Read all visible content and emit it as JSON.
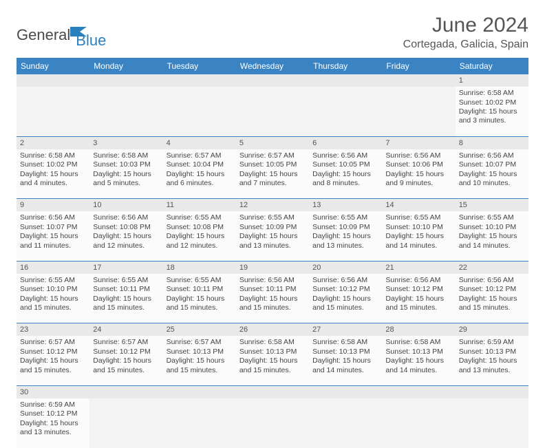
{
  "logo": {
    "part1": "General",
    "part2": "Blue"
  },
  "title": "June 2024",
  "location": "Cortegada, Galicia, Spain",
  "colors": {
    "header_bg": "#3b84c4",
    "header_fg": "#ffffff",
    "daynum_bg": "#e9e9e9",
    "cell_border": "#3b84c4",
    "logo_gray": "#4a4a4a",
    "logo_blue": "#2a7fbf"
  },
  "weekdays": [
    "Sunday",
    "Monday",
    "Tuesday",
    "Wednesday",
    "Thursday",
    "Friday",
    "Saturday"
  ],
  "weeks": [
    [
      null,
      null,
      null,
      null,
      null,
      null,
      {
        "n": "1",
        "sr": "Sunrise: 6:58 AM",
        "ss": "Sunset: 10:02 PM",
        "dl": "Daylight: 15 hours and 3 minutes."
      }
    ],
    [
      {
        "n": "2",
        "sr": "Sunrise: 6:58 AM",
        "ss": "Sunset: 10:02 PM",
        "dl": "Daylight: 15 hours and 4 minutes."
      },
      {
        "n": "3",
        "sr": "Sunrise: 6:58 AM",
        "ss": "Sunset: 10:03 PM",
        "dl": "Daylight: 15 hours and 5 minutes."
      },
      {
        "n": "4",
        "sr": "Sunrise: 6:57 AM",
        "ss": "Sunset: 10:04 PM",
        "dl": "Daylight: 15 hours and 6 minutes."
      },
      {
        "n": "5",
        "sr": "Sunrise: 6:57 AM",
        "ss": "Sunset: 10:05 PM",
        "dl": "Daylight: 15 hours and 7 minutes."
      },
      {
        "n": "6",
        "sr": "Sunrise: 6:56 AM",
        "ss": "Sunset: 10:05 PM",
        "dl": "Daylight: 15 hours and 8 minutes."
      },
      {
        "n": "7",
        "sr": "Sunrise: 6:56 AM",
        "ss": "Sunset: 10:06 PM",
        "dl": "Daylight: 15 hours and 9 minutes."
      },
      {
        "n": "8",
        "sr": "Sunrise: 6:56 AM",
        "ss": "Sunset: 10:07 PM",
        "dl": "Daylight: 15 hours and 10 minutes."
      }
    ],
    [
      {
        "n": "9",
        "sr": "Sunrise: 6:56 AM",
        "ss": "Sunset: 10:07 PM",
        "dl": "Daylight: 15 hours and 11 minutes."
      },
      {
        "n": "10",
        "sr": "Sunrise: 6:56 AM",
        "ss": "Sunset: 10:08 PM",
        "dl": "Daylight: 15 hours and 12 minutes."
      },
      {
        "n": "11",
        "sr": "Sunrise: 6:55 AM",
        "ss": "Sunset: 10:08 PM",
        "dl": "Daylight: 15 hours and 12 minutes."
      },
      {
        "n": "12",
        "sr": "Sunrise: 6:55 AM",
        "ss": "Sunset: 10:09 PM",
        "dl": "Daylight: 15 hours and 13 minutes."
      },
      {
        "n": "13",
        "sr": "Sunrise: 6:55 AM",
        "ss": "Sunset: 10:09 PM",
        "dl": "Daylight: 15 hours and 13 minutes."
      },
      {
        "n": "14",
        "sr": "Sunrise: 6:55 AM",
        "ss": "Sunset: 10:10 PM",
        "dl": "Daylight: 15 hours and 14 minutes."
      },
      {
        "n": "15",
        "sr": "Sunrise: 6:55 AM",
        "ss": "Sunset: 10:10 PM",
        "dl": "Daylight: 15 hours and 14 minutes."
      }
    ],
    [
      {
        "n": "16",
        "sr": "Sunrise: 6:55 AM",
        "ss": "Sunset: 10:10 PM",
        "dl": "Daylight: 15 hours and 15 minutes."
      },
      {
        "n": "17",
        "sr": "Sunrise: 6:55 AM",
        "ss": "Sunset: 10:11 PM",
        "dl": "Daylight: 15 hours and 15 minutes."
      },
      {
        "n": "18",
        "sr": "Sunrise: 6:55 AM",
        "ss": "Sunset: 10:11 PM",
        "dl": "Daylight: 15 hours and 15 minutes."
      },
      {
        "n": "19",
        "sr": "Sunrise: 6:56 AM",
        "ss": "Sunset: 10:11 PM",
        "dl": "Daylight: 15 hours and 15 minutes."
      },
      {
        "n": "20",
        "sr": "Sunrise: 6:56 AM",
        "ss": "Sunset: 10:12 PM",
        "dl": "Daylight: 15 hours and 15 minutes."
      },
      {
        "n": "21",
        "sr": "Sunrise: 6:56 AM",
        "ss": "Sunset: 10:12 PM",
        "dl": "Daylight: 15 hours and 15 minutes."
      },
      {
        "n": "22",
        "sr": "Sunrise: 6:56 AM",
        "ss": "Sunset: 10:12 PM",
        "dl": "Daylight: 15 hours and 15 minutes."
      }
    ],
    [
      {
        "n": "23",
        "sr": "Sunrise: 6:57 AM",
        "ss": "Sunset: 10:12 PM",
        "dl": "Daylight: 15 hours and 15 minutes."
      },
      {
        "n": "24",
        "sr": "Sunrise: 6:57 AM",
        "ss": "Sunset: 10:12 PM",
        "dl": "Daylight: 15 hours and 15 minutes."
      },
      {
        "n": "25",
        "sr": "Sunrise: 6:57 AM",
        "ss": "Sunset: 10:13 PM",
        "dl": "Daylight: 15 hours and 15 minutes."
      },
      {
        "n": "26",
        "sr": "Sunrise: 6:58 AM",
        "ss": "Sunset: 10:13 PM",
        "dl": "Daylight: 15 hours and 15 minutes."
      },
      {
        "n": "27",
        "sr": "Sunrise: 6:58 AM",
        "ss": "Sunset: 10:13 PM",
        "dl": "Daylight: 15 hours and 14 minutes."
      },
      {
        "n": "28",
        "sr": "Sunrise: 6:58 AM",
        "ss": "Sunset: 10:13 PM",
        "dl": "Daylight: 15 hours and 14 minutes."
      },
      {
        "n": "29",
        "sr": "Sunrise: 6:59 AM",
        "ss": "Sunset: 10:13 PM",
        "dl": "Daylight: 15 hours and 13 minutes."
      }
    ],
    [
      {
        "n": "30",
        "sr": "Sunrise: 6:59 AM",
        "ss": "Sunset: 10:12 PM",
        "dl": "Daylight: 15 hours and 13 minutes."
      },
      null,
      null,
      null,
      null,
      null,
      null
    ]
  ]
}
